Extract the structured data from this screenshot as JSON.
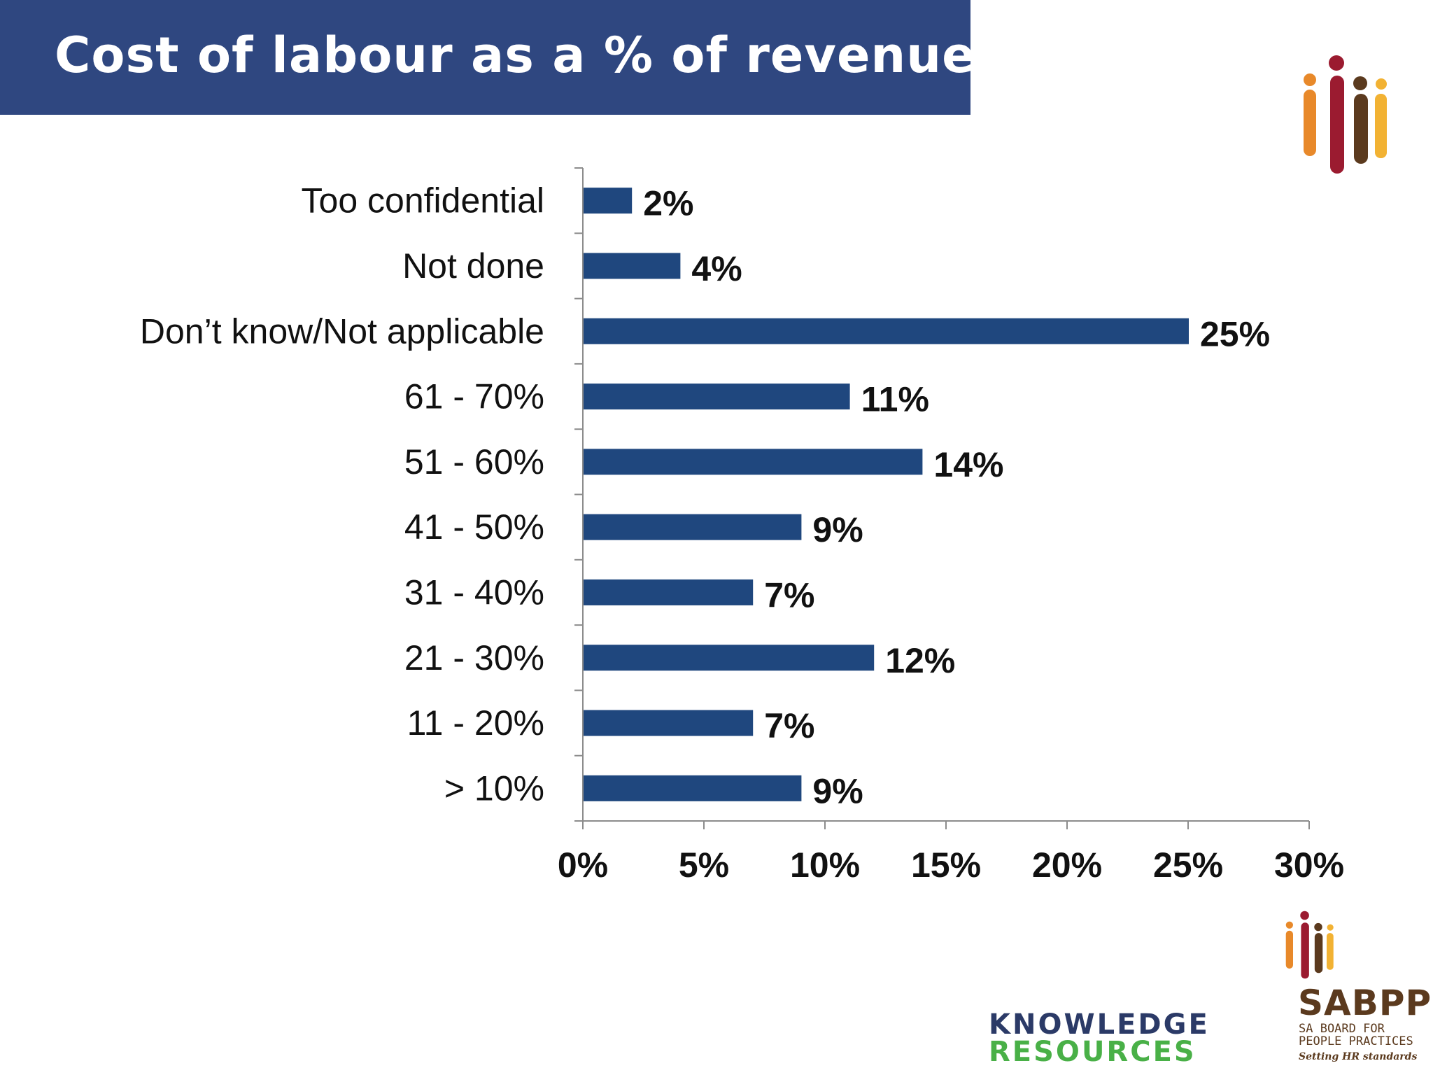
{
  "slide": {
    "title": "Cost of labour as a % of revenue"
  },
  "logos": {
    "top_mark": "sabpp-figures-icon",
    "sabpp_name": "SABPP",
    "sabpp_sub": "SA BOARD FOR PEOPLE PRACTICES",
    "sabpp_tagline": "Setting HR standards",
    "kr_line1": "KNOWLEDGE",
    "kr_line2": "RESOURCES",
    "colors": {
      "orange": "#e8892a",
      "red": "#9b1b30",
      "brown": "#5b3a1e",
      "gold": "#f2b233",
      "navy": "#2b3a67",
      "green": "#49b047"
    }
  },
  "chart_data": {
    "type": "bar",
    "orientation": "horizontal",
    "categories": [
      "Too confidential",
      "Not done",
      "Don’t know/Not applicable",
      "61 - 70%",
      "51 - 60%",
      "41 - 50%",
      "31 - 40%",
      "21 - 30%",
      "11 - 20%",
      "> 10%"
    ],
    "values": [
      2,
      4,
      25,
      11,
      14,
      9,
      7,
      12,
      7,
      9
    ],
    "value_labels": [
      "2%",
      "4%",
      "25%",
      "11%",
      "14%",
      "9%",
      "7%",
      "12%",
      "7%",
      "9%"
    ],
    "x_ticks": [
      "0%",
      "5%",
      "10%",
      "15%",
      "20%",
      "25%",
      "30%"
    ],
    "xlim": [
      0,
      30
    ],
    "bar_color": "#1f477e",
    "grid": false,
    "legend": "none"
  }
}
